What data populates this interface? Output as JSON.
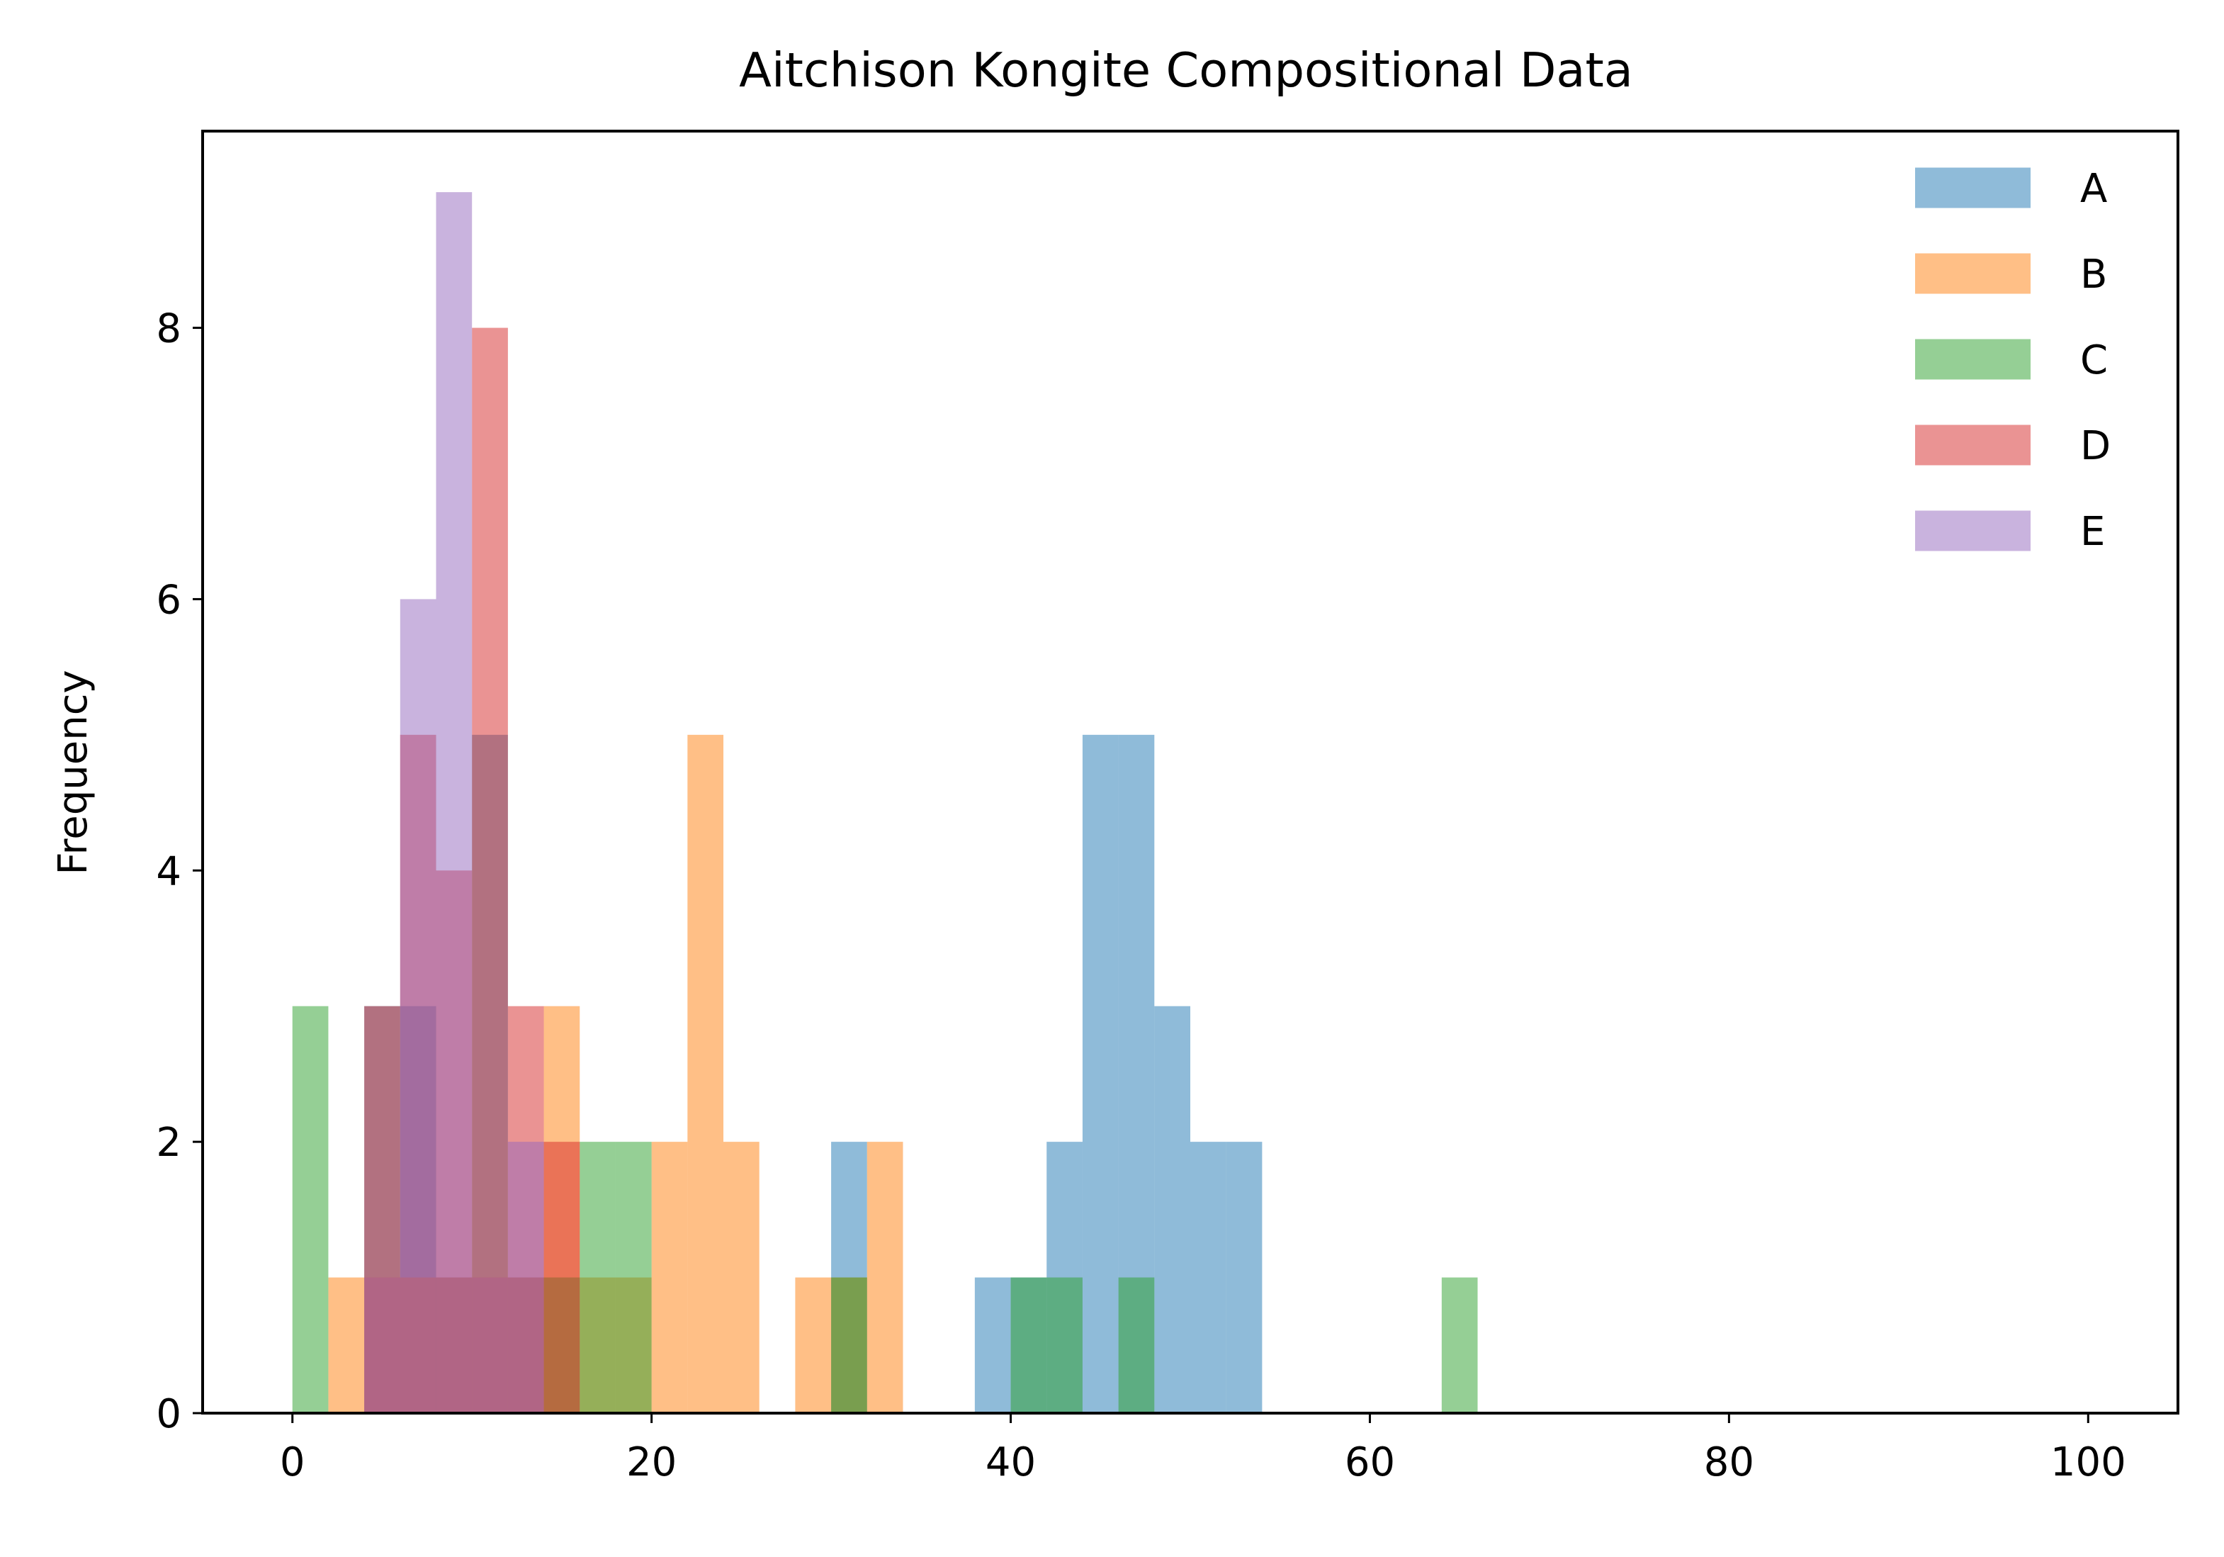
{
  "chart_data": {
    "type": "bar",
    "subtype": "histogram",
    "title": "Aitchison Kongite Compositional Data",
    "xlabel": "",
    "ylabel": "Frequency",
    "xlim": [
      -5,
      105
    ],
    "ylim": [
      0,
      9.45
    ],
    "xticks": [
      0,
      20,
      40,
      60,
      80,
      100
    ],
    "yticks": [
      0,
      2,
      4,
      6,
      8
    ],
    "bin_width": 2,
    "bar_opacity": 0.5,
    "legend_position": "top-right",
    "grid": false,
    "series": [
      {
        "name": "A",
        "color": "#1f77b4",
        "bins": [
          {
            "x0": 4,
            "count": 3
          },
          {
            "x0": 6,
            "count": 3
          },
          {
            "x0": 8,
            "count": 1
          },
          {
            "x0": 10,
            "count": 5
          },
          {
            "x0": 12,
            "count": 1
          },
          {
            "x0": 30,
            "count": 2
          },
          {
            "x0": 38,
            "count": 1
          },
          {
            "x0": 40,
            "count": 1
          },
          {
            "x0": 42,
            "count": 2
          },
          {
            "x0": 44,
            "count": 5
          },
          {
            "x0": 46,
            "count": 5
          },
          {
            "x0": 48,
            "count": 3
          },
          {
            "x0": 50,
            "count": 2
          },
          {
            "x0": 52,
            "count": 2
          }
        ]
      },
      {
        "name": "B",
        "color": "#ff7f0e",
        "bins": [
          {
            "x0": 2,
            "count": 1
          },
          {
            "x0": 4,
            "count": 1
          },
          {
            "x0": 6,
            "count": 1
          },
          {
            "x0": 8,
            "count": 1
          },
          {
            "x0": 10,
            "count": 1
          },
          {
            "x0": 12,
            "count": 1
          },
          {
            "x0": 14,
            "count": 3
          },
          {
            "x0": 16,
            "count": 1
          },
          {
            "x0": 18,
            "count": 1
          },
          {
            "x0": 20,
            "count": 2
          },
          {
            "x0": 22,
            "count": 5
          },
          {
            "x0": 24,
            "count": 2
          },
          {
            "x0": 28,
            "count": 1
          },
          {
            "x0": 30,
            "count": 1
          },
          {
            "x0": 32,
            "count": 2
          }
        ]
      },
      {
        "name": "C",
        "color": "#2ca02c",
        "bins": [
          {
            "x0": 0,
            "count": 3
          },
          {
            "x0": 14,
            "count": 1
          },
          {
            "x0": 16,
            "count": 2
          },
          {
            "x0": 18,
            "count": 2
          },
          {
            "x0": 30,
            "count": 1
          },
          {
            "x0": 40,
            "count": 1
          },
          {
            "x0": 42,
            "count": 1
          },
          {
            "x0": 46,
            "count": 1
          },
          {
            "x0": 64,
            "count": 1
          }
        ]
      },
      {
        "name": "D",
        "color": "#d62728",
        "bins": [
          {
            "x0": 4,
            "count": 3
          },
          {
            "x0": 6,
            "count": 5
          },
          {
            "x0": 8,
            "count": 4
          },
          {
            "x0": 10,
            "count": 8
          },
          {
            "x0": 12,
            "count": 3
          },
          {
            "x0": 14,
            "count": 2
          }
        ]
      },
      {
        "name": "E",
        "color": "#9467bd",
        "bins": [
          {
            "x0": 4,
            "count": 1
          },
          {
            "x0": 6,
            "count": 6
          },
          {
            "x0": 8,
            "count": 9
          },
          {
            "x0": 10,
            "count": 1
          },
          {
            "x0": 12,
            "count": 2
          }
        ]
      }
    ]
  }
}
